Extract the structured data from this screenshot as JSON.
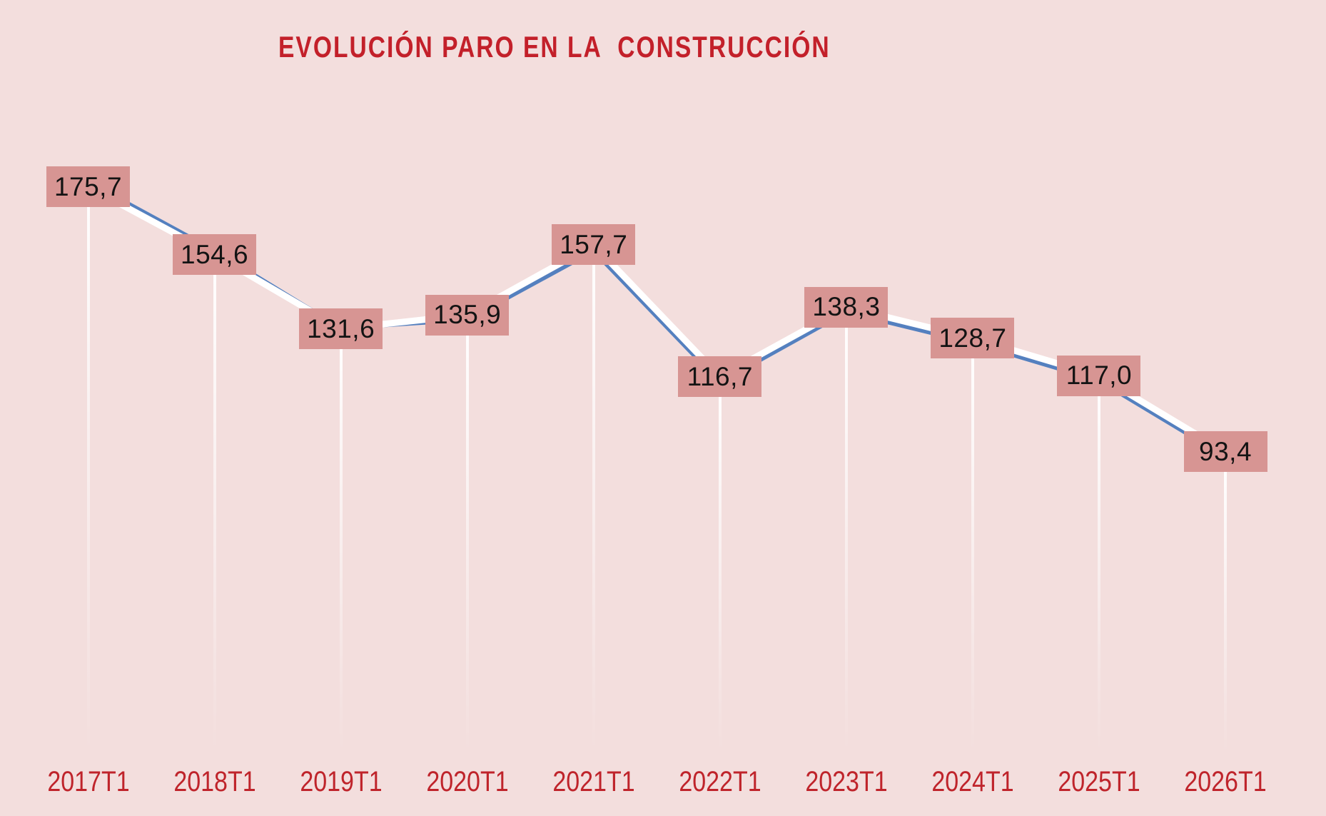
{
  "title": {
    "text": "EVOLUCIÓN PARO EN LA  CONSTRUCCIÓN"
  },
  "chart_data": {
    "type": "line",
    "title": "EVOLUCIÓN PARO EN LA  CONSTRUCCIÓN",
    "categories": [
      "2017T1",
      "2018T1",
      "2019T1",
      "2020T1",
      "2021T1",
      "2022T1",
      "2023T1",
      "2024T1",
      "2025T1",
      "2026T1"
    ],
    "values": [
      175.7,
      154.6,
      131.6,
      135.9,
      157.7,
      116.7,
      138.3,
      128.7,
      117.0,
      93.4
    ],
    "value_labels": [
      "175,7",
      "154,6",
      "131,6",
      "135,9",
      "157,7",
      "116,7",
      "138,3",
      "128,7",
      "117,0",
      "93,4"
    ],
    "series": [
      {
        "name": "paro-construccion",
        "values": [
          175.7,
          154.6,
          131.6,
          135.9,
          157.7,
          116.7,
          138.3,
          128.7,
          117.0,
          93.4
        ]
      }
    ],
    "xlabel": "",
    "ylabel": "",
    "ylim": [
      85,
      190
    ],
    "grid": false,
    "legend": "none",
    "marker": "label-box",
    "colors": {
      "background": "#f3dedd",
      "label_box_fill": "#d79593",
      "label_text": "#131313",
      "line_primary_blue": "#5480bf",
      "line_halo_white": "#ffffff",
      "drop_line": "#ffffff",
      "title_text": "#c3202a",
      "axis_label_text": "#bf242b"
    }
  }
}
